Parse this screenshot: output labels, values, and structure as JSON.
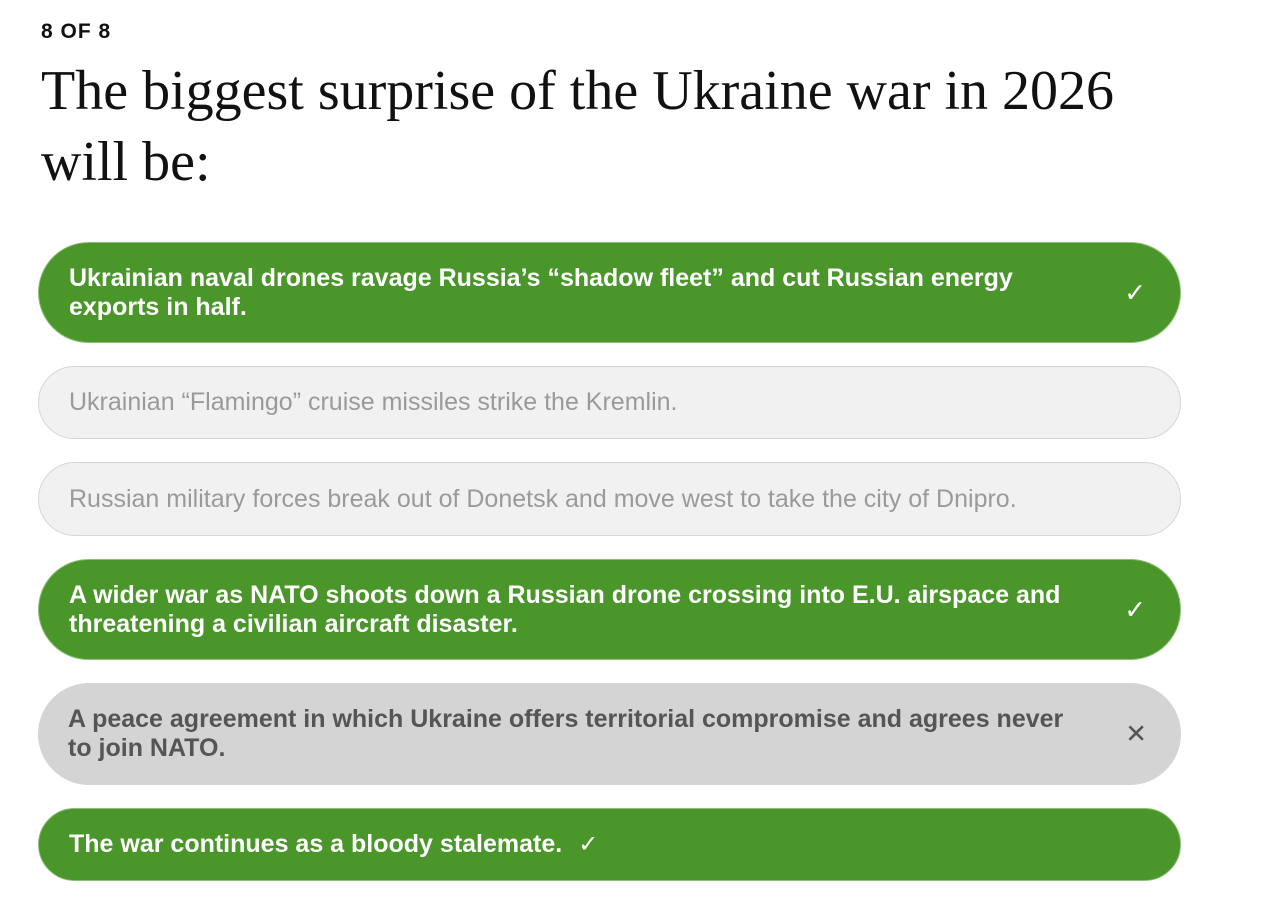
{
  "counter": "8 OF 8",
  "title": "The biggest surprise of the Ukraine war in 2026 will be:",
  "options": [
    {
      "label": "Ukrainian naval drones ravage Russia’s “shadow fleet” and cut Russian energy exports in half.",
      "state": "selected-correct",
      "icon": "check-icon",
      "glyph": "✓"
    },
    {
      "label": "Ukrainian “Flamingo” cruise missiles strike the Kremlin.",
      "state": "unselected"
    },
    {
      "label": "Russian military forces break out of Donetsk and move west to take the city of Dnipro.",
      "state": "unselected"
    },
    {
      "label": "A wider war as NATO shoots down a Russian drone crossing into E.U. airspace and threatening a civilian aircraft disaster.",
      "state": "selected-correct",
      "icon": "check-icon",
      "glyph": "✓"
    },
    {
      "label": "A peace agreement in which Ukraine offers territorial compromise and agrees never to join NATO.",
      "state": "selected-wrong",
      "icon": "close-icon",
      "glyph": "✕"
    },
    {
      "label": "The war continues as a bloody stalemate.",
      "state": "selected-correct",
      "icon": "check-icon",
      "glyph": "✓"
    }
  ],
  "colors": {
    "correct": "#4a962a",
    "neutral": "#f1f1f1",
    "wrong": "#d4d4d4"
  }
}
